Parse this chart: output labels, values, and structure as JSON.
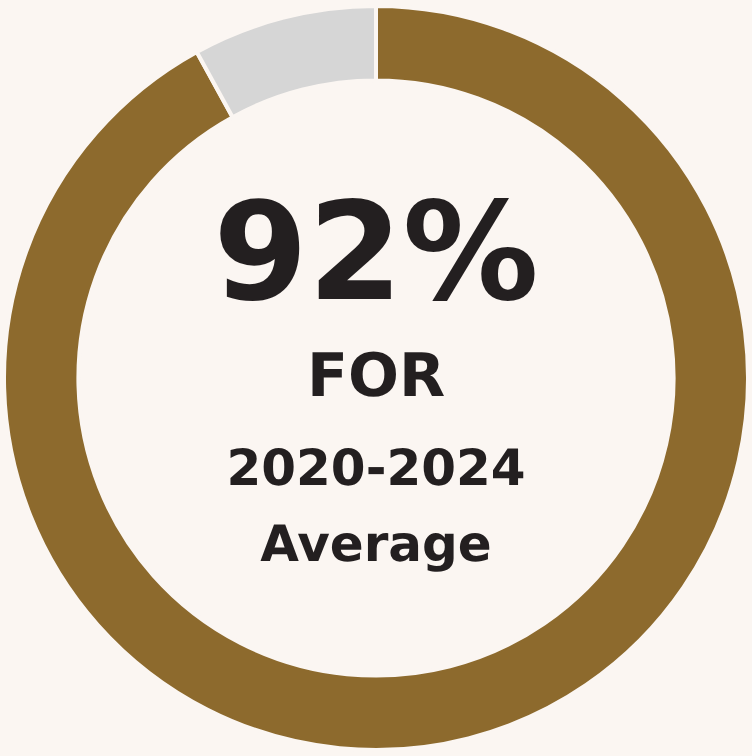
{
  "chart_data": {
    "type": "donut",
    "categories": [
      null,
      null
    ],
    "values": [
      92,
      8
    ],
    "colors": [
      "#8d6a2d",
      "#d6d6d6"
    ],
    "value_labels": [
      "92%",
      null
    ],
    "annotations": [
      "FOR",
      "2020-2024",
      "Average"
    ]
  }
}
